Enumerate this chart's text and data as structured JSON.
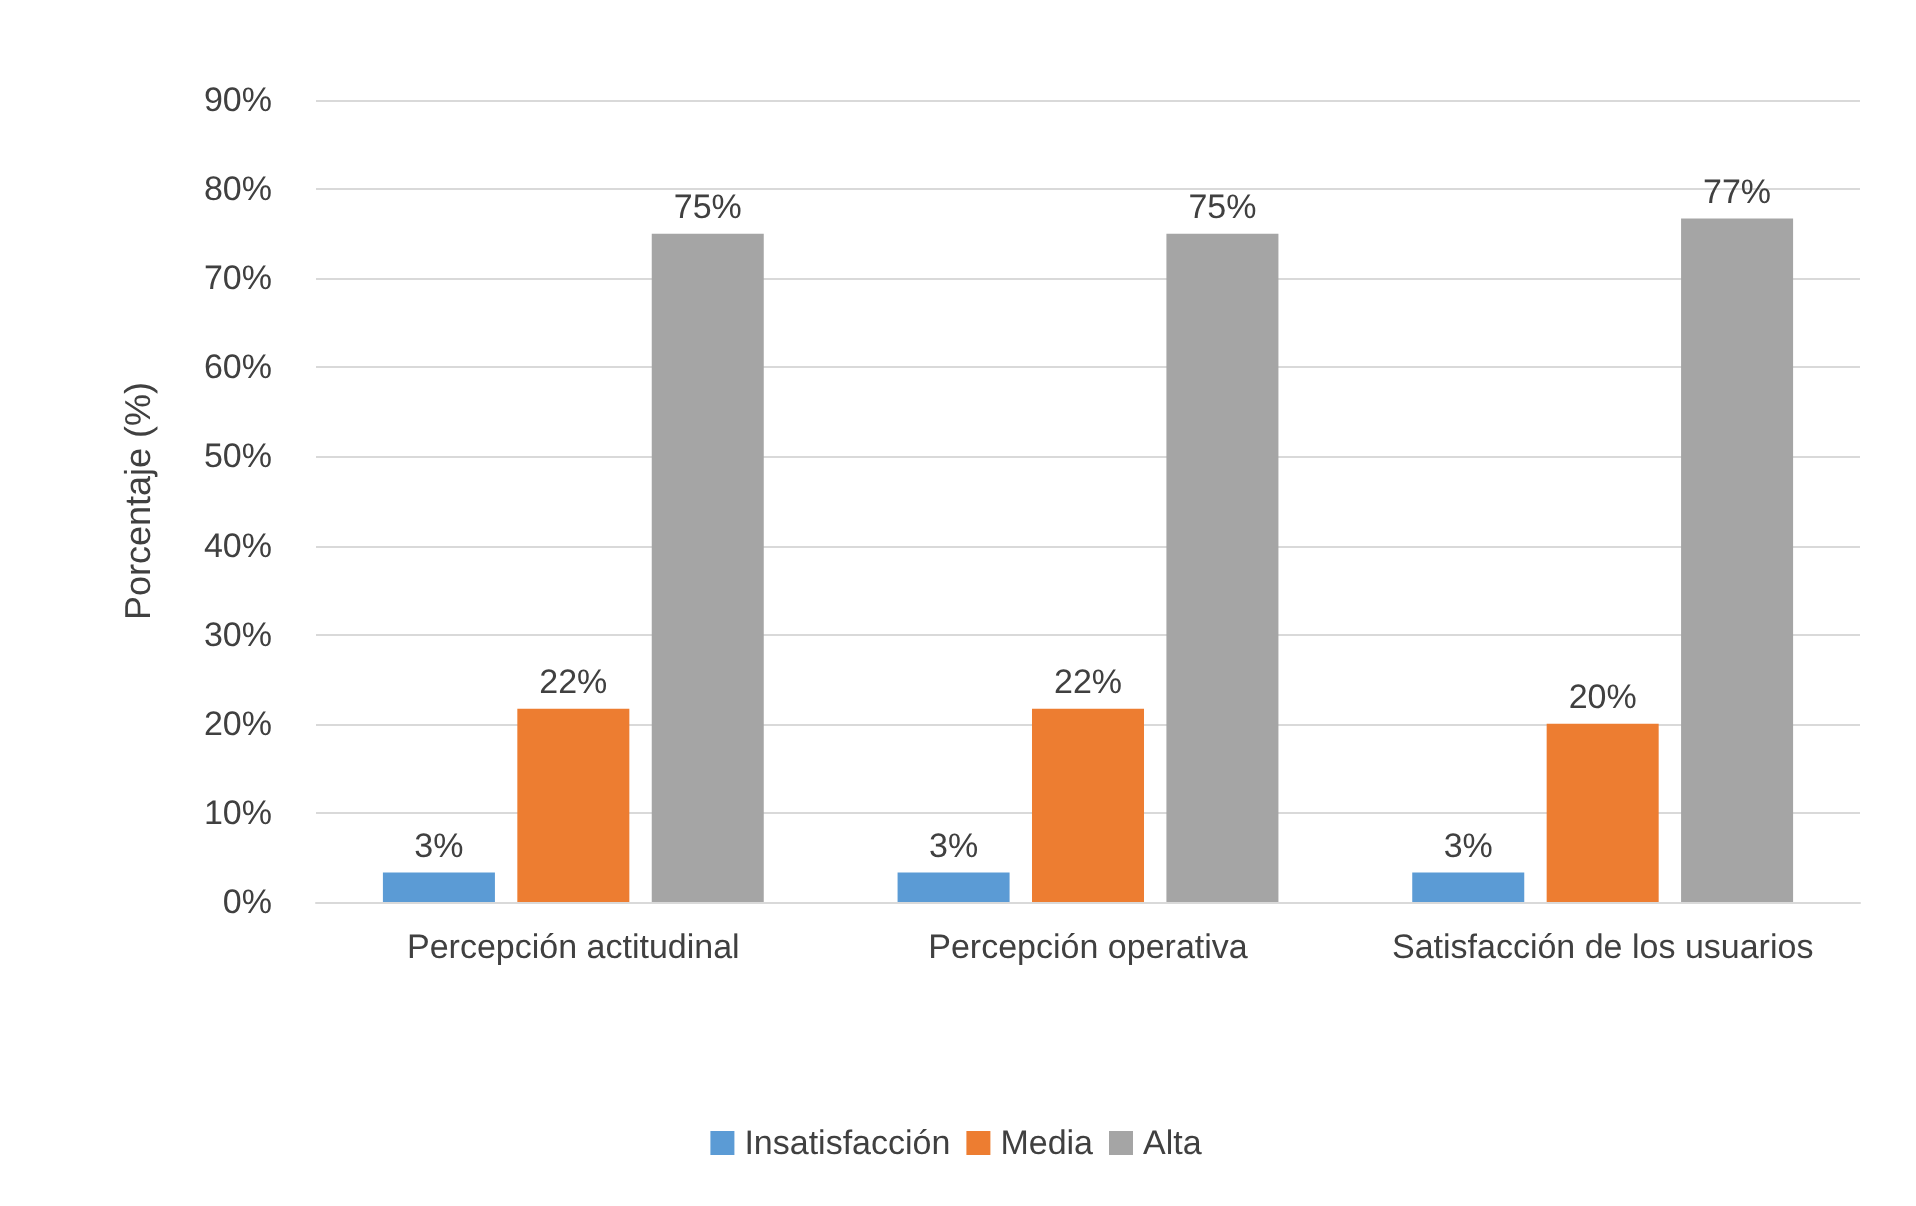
{
  "chart_data": {
    "type": "bar",
    "ylabel": "Porcentaje (%)",
    "categories": [
      "Percepción actitudinal",
      "Percepción operativa",
      "Satisfacción de los usuarios"
    ],
    "series": [
      {
        "name": "Insatisfacción",
        "color": "#5b9bd5",
        "values": [
          3.3,
          3.3,
          3.3
        ],
        "value_labels": [
          "3%",
          "3%",
          "3%"
        ]
      },
      {
        "name": "Media",
        "color": "#ed7d31",
        "values": [
          21.7,
          21.7,
          20
        ],
        "value_labels": [
          "22%",
          "22%",
          "20%"
        ]
      },
      {
        "name": "Alta",
        "color": "#a5a5a5",
        "values": [
          75,
          75,
          76.7
        ],
        "value_labels": [
          "75%",
          "75%",
          "77%"
        ]
      }
    ],
    "ylim": [
      0,
      90
    ],
    "yticks": [
      {
        "value": 0,
        "label": "0%"
      },
      {
        "value": 10,
        "label": "10%"
      },
      {
        "value": 20,
        "label": "20%"
      },
      {
        "value": 30,
        "label": "30%"
      },
      {
        "value": 40,
        "label": "40%"
      },
      {
        "value": 50,
        "label": "50%"
      },
      {
        "value": 60,
        "label": "60%"
      },
      {
        "value": 70,
        "label": "70%"
      },
      {
        "value": 80,
        "label": "80%"
      },
      {
        "value": 90,
        "label": "90%"
      }
    ],
    "grid": "y",
    "legend": "bottom"
  }
}
